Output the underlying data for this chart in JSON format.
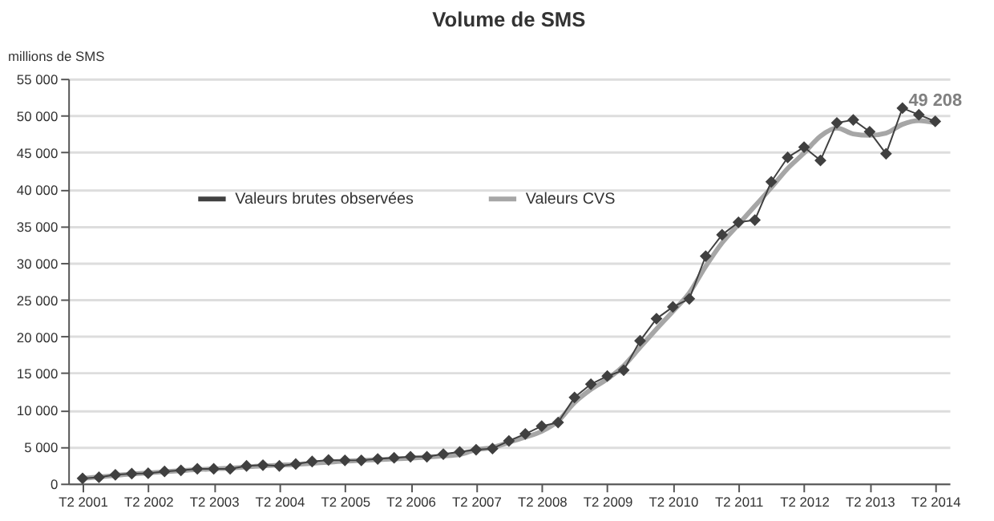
{
  "chart_data": {
    "type": "line",
    "title": "Volume de SMS",
    "ylabel": "millions de SMS",
    "categories": [
      "T2 2001",
      null,
      null,
      null,
      "T2 2002",
      null,
      null,
      null,
      "T2 2003",
      null,
      null,
      null,
      "T2 2004",
      null,
      null,
      null,
      "T2 2005",
      null,
      null,
      null,
      "T2 2006",
      null,
      null,
      null,
      "T2 2007",
      null,
      null,
      null,
      "T2 2008",
      null,
      null,
      null,
      "T2 2009",
      null,
      null,
      null,
      "T2 2010",
      null,
      null,
      null,
      "T2 2011",
      null,
      null,
      null,
      "T2 2012",
      null,
      null,
      null,
      "T2 2013",
      null,
      null,
      null,
      "T2 2014"
    ],
    "series": [
      {
        "name": "Valeurs brutes observées",
        "color": "#404040",
        "marker": "diamond",
        "values": [
          700,
          850,
          1200,
          1350,
          1400,
          1650,
          1800,
          2000,
          2000,
          2000,
          2400,
          2500,
          2400,
          2650,
          3000,
          3200,
          3150,
          3150,
          3350,
          3500,
          3650,
          3650,
          4000,
          4300,
          4600,
          4750,
          5800,
          6750,
          7800,
          8300,
          11700,
          13500,
          14600,
          15400,
          19400,
          22400,
          24000,
          25100,
          30900,
          33800,
          35500,
          35800,
          41000,
          44300,
          45700,
          43900,
          49000,
          49400,
          47800,
          44800,
          51000,
          50100,
          49208
        ]
      },
      {
        "name": "Valeurs CVS",
        "color": "#a6a6a6",
        "marker": "none",
        "values": [
          700,
          900,
          1100,
          1300,
          1450,
          1600,
          1750,
          1900,
          2000,
          2100,
          2250,
          2400,
          2500,
          2600,
          2750,
          2900,
          3050,
          3150,
          3250,
          3350,
          3450,
          3600,
          3750,
          3950,
          4600,
          4900,
          5600,
          6300,
          7100,
          8500,
          11000,
          12800,
          14200,
          16000,
          18500,
          21000,
          23400,
          25900,
          29500,
          32700,
          35200,
          37700,
          40200,
          42800,
          44900,
          47200,
          48300,
          47500,
          47300,
          47600,
          48800,
          49300,
          49000
        ]
      }
    ],
    "ylim": [
      0,
      55000
    ],
    "yticks": [
      {
        "value": 0,
        "label": "0"
      },
      {
        "value": 5000,
        "label": "5 000"
      },
      {
        "value": 10000,
        "label": "10 000"
      },
      {
        "value": 15000,
        "label": "15 000"
      },
      {
        "value": 20000,
        "label": "20 000"
      },
      {
        "value": 25000,
        "label": "25 000"
      },
      {
        "value": 30000,
        "label": "30 000"
      },
      {
        "value": 35000,
        "label": "35 000"
      },
      {
        "value": 40000,
        "label": "40 000"
      },
      {
        "value": 45000,
        "label": "45 000"
      },
      {
        "value": 50000,
        "label": "50 000"
      },
      {
        "value": 55000,
        "label": "55 000"
      }
    ],
    "grid": "y",
    "legend": "top left",
    "line_style": "solid",
    "annotations": [
      {
        "text": "49 208",
        "x": "T2 2014",
        "y": 49208
      }
    ]
  }
}
